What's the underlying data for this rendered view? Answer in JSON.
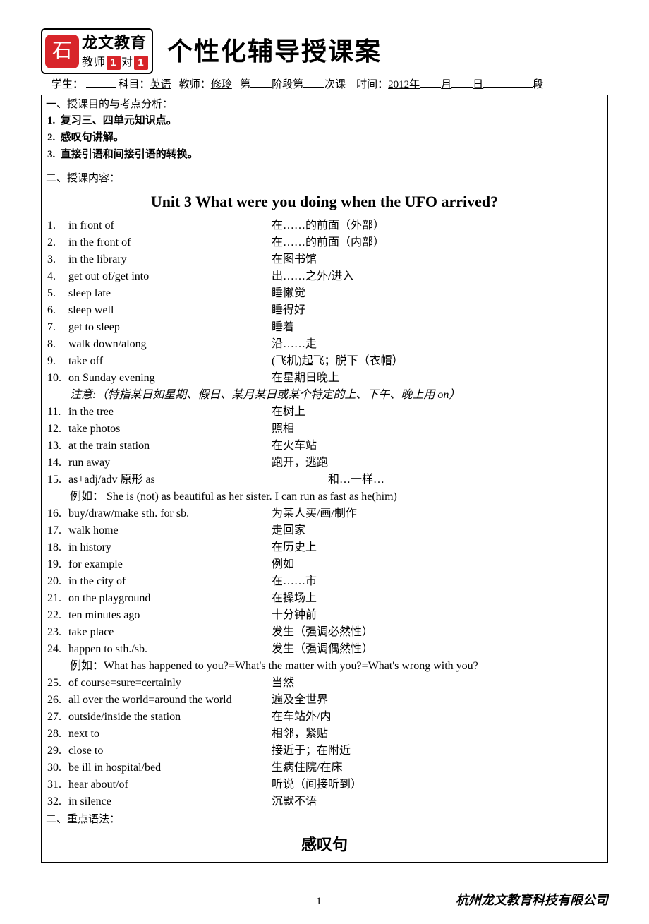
{
  "logo": {
    "brand": "龙文教育",
    "sub_prefix": "教师",
    "sub_mid": "对",
    "box1": "1",
    "box2": "1"
  },
  "title": "个性化辅导授课案",
  "info": {
    "student_label": "学生：",
    "subject_label": "科目：",
    "subject_value": "英语",
    "teacher_label": "教师：",
    "teacher_value": "修玲",
    "stage_prefix": "第",
    "stage_mid": "阶段第",
    "stage_suffix": "次课",
    "time_label": "时间：",
    "year": "2012",
    "year_unit": "年",
    "month_unit": "月",
    "day_unit": "日",
    "period_unit": "段"
  },
  "section1": {
    "heading": "一、授课目的与考点分析：",
    "items": [
      "复习三、四单元知识点。",
      "感叹句讲解。",
      "直接引语和间接引语的转换。"
    ]
  },
  "section2": {
    "heading": "二、授课内容：",
    "unit_title": "Unit 3    What were you doing when the UFO arrived?",
    "vocab": [
      {
        "n": "1.",
        "en": "in front of",
        "cn": "在……的前面（外部）"
      },
      {
        "n": "2.",
        "en": "in the front of",
        "cn": "在……的前面（内部）"
      },
      {
        "n": "3.",
        "en": "in the library",
        "cn": "在图书馆"
      },
      {
        "n": "4.",
        "en": "get out of/get into",
        "cn": "出……之外/进入"
      },
      {
        "n": "5.",
        "en": "sleep late",
        "cn": "睡懒觉"
      },
      {
        "n": "6.",
        "en": "sleep well",
        "cn": "睡得好"
      },
      {
        "n": "7.",
        "en": "get to sleep",
        "cn": "睡着"
      },
      {
        "n": "8.",
        "en": "walk down/along",
        "cn": "沿……走"
      },
      {
        "n": "9.",
        "en": "take off",
        "cn": "(飞机)起飞；脱下（衣帽）"
      },
      {
        "n": "10.",
        "en": "on Sunday evening",
        "cn": "在星期日晚上"
      }
    ],
    "note1": "注意:（特指某日如星期、假日、某月某日或某个特定的上、下午、晚上用 on）",
    "vocab2": [
      {
        "n": "11.",
        "en": "in the tree",
        "cn": "在树上"
      },
      {
        "n": "12.",
        "en": "take photos",
        "cn": "照相"
      },
      {
        "n": "13.",
        "en": "at the train station",
        "cn": "在火车站"
      },
      {
        "n": "14.",
        "en": "run away",
        "cn": "跑开，逃跑"
      },
      {
        "n": "15.",
        "en": "as+adj/adv 原形  as",
        "cn": "　　　　　和…一样…"
      }
    ],
    "example1": "例如：   She is (not) as beautiful as her sister.     I can run as fast as he(him)",
    "vocab3": [
      {
        "n": "16.",
        "en": "buy/draw/make sth. for sb.",
        "cn": "为某人买/画/制作"
      },
      {
        "n": "17.",
        "en": "walk home",
        "cn": "走回家"
      },
      {
        "n": "18.",
        "en": "in history",
        "cn": "在历史上"
      },
      {
        "n": "19.",
        "en": "for example",
        "cn": "例如"
      },
      {
        "n": "20.",
        "en": "in the city of",
        "cn": "在……市"
      },
      {
        "n": "21.",
        "en": "on the playground",
        "cn": "在操场上"
      },
      {
        "n": "22.",
        "en": "ten minutes ago",
        "cn": "十分钟前"
      },
      {
        "n": "23.",
        "en": "take place",
        "cn": "发生（强调必然性）"
      },
      {
        "n": "24.",
        "en": "happen to sth./sb.",
        "cn": "发生（强调偶然性）"
      }
    ],
    "example2": "例如：What has happened to you?=What's the matter with you?=What's wrong with you?",
    "vocab4": [
      {
        "n": "25.",
        "en": "of course=sure=certainly",
        "cn": "当然"
      },
      {
        "n": "26.",
        "en": "all over the world=around the world",
        "cn": "遍及全世界"
      },
      {
        "n": "27.",
        "en": "outside/inside the station",
        "cn": "在车站外/内"
      },
      {
        "n": "28.",
        "en": "next to",
        "cn": "相邻，紧贴"
      },
      {
        "n": "29.",
        "en": "close to",
        "cn": "接近于；在附近"
      },
      {
        "n": "30.",
        "en": "be ill in hospital/bed",
        "cn": "生病住院/在床"
      },
      {
        "n": "31.",
        "en": "hear about/of",
        "cn": "听说（间接听到）"
      },
      {
        "n": "32.",
        "en": "in silence",
        "cn": "沉默不语"
      }
    ],
    "grammar_label": "二、重点语法：",
    "grammar_title": "感叹句"
  },
  "footer": {
    "page": "1",
    "company": "杭州龙文教育科技有限公司"
  }
}
